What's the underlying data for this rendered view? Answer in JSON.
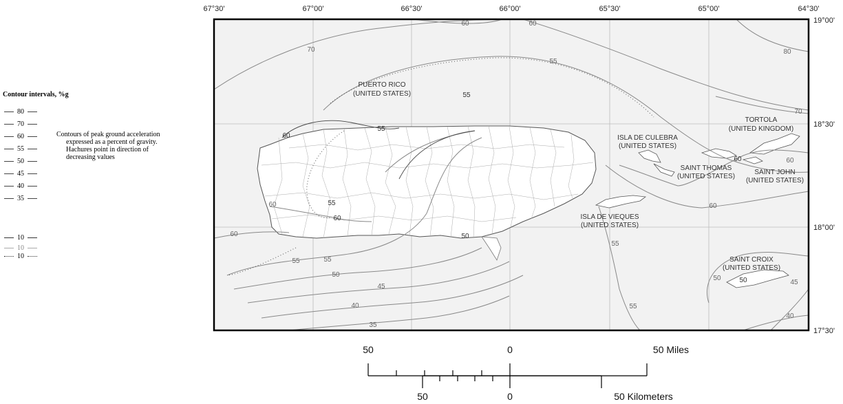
{
  "legend": {
    "title": "Contour intervals, %g",
    "intervals": [
      "80",
      "70",
      "60",
      "55",
      "50",
      "45",
      "40",
      "35"
    ],
    "sample_value": "10",
    "explanation": {
      "line1": "Contours of peak ground acceleration",
      "line2": "expressed as a percent of gravity.",
      "line3": "Hachures point in direction of",
      "line4": "decreasing values"
    }
  },
  "axes": {
    "longitude_ticks": [
      "67°30'",
      "67°00'",
      "66°30'",
      "66°00'",
      "65°30'",
      "65°00'",
      "64°30'"
    ],
    "latitude_ticks": [
      "19°00'",
      "18°30'",
      "18°00'",
      "17°30'"
    ]
  },
  "places": {
    "puerto_rico": [
      "PUERTO RICO",
      "(UNITED STATES)"
    ],
    "culebra": [
      "ISLA DE CULEBRA",
      "(UNITED STATES)"
    ],
    "tortola": [
      "TORTOLA",
      "(UNITED KINGDOM)"
    ],
    "saint_thomas": [
      "SAINT THOMAS",
      "(UNITED STATES)"
    ],
    "saint_john": [
      "SAINT JOHN",
      "(UNITED STATES)"
    ],
    "vieques": [
      "ISLA DE VIEQUES",
      "(UNITED STATES)"
    ],
    "saint_croix": [
      "SAINT CROIX",
      "(UNITED STATES)"
    ]
  },
  "contour_labels": [
    "60",
    "60",
    "70",
    "55",
    "80",
    "70",
    "60",
    "60",
    "60",
    "55",
    "55",
    "60",
    "55",
    "60",
    "60",
    "50",
    "55",
    "55",
    "50",
    "45",
    "40",
    "35",
    "55",
    "55",
    "50",
    "50",
    "45",
    "40"
  ],
  "scale_bar": {
    "miles": {
      "left": "50",
      "center": "0",
      "right": "50 Miles"
    },
    "kilometers": {
      "left": "50",
      "center": "0",
      "right": "50 Kilometers"
    }
  }
}
